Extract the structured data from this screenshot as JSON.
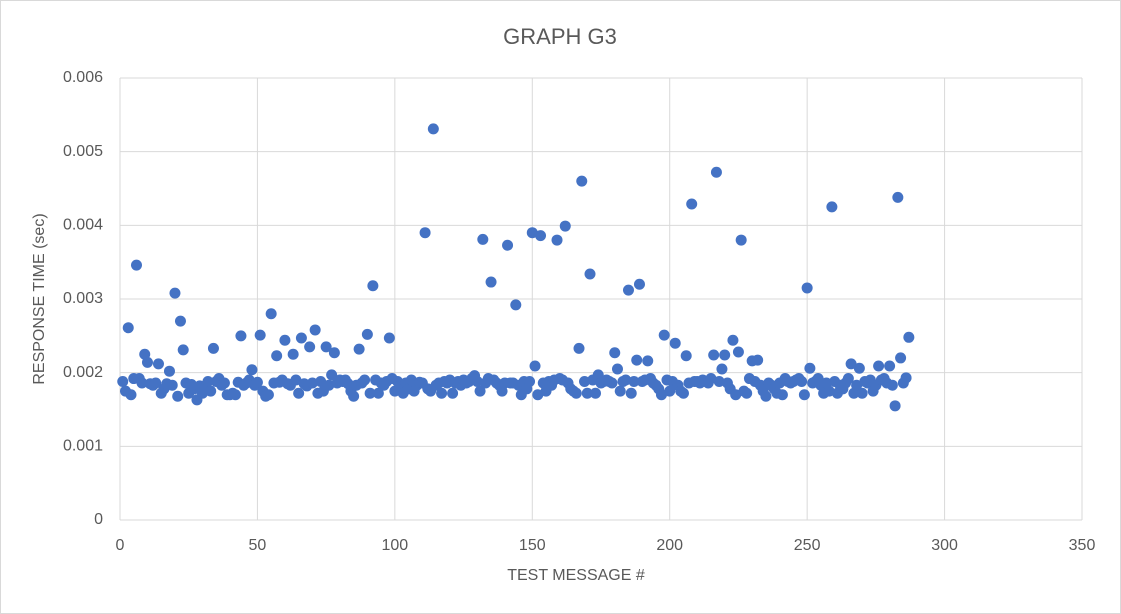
{
  "chart_data": {
    "type": "scatter",
    "title": "GRAPH G3",
    "x_label": "TEST MESSAGE #",
    "y_label": "RESPONSE TIME (sec)",
    "xlim": [
      0,
      350
    ],
    "xticks": [
      0,
      50,
      100,
      150,
      200,
      250,
      300,
      350
    ],
    "ylim": [
      0,
      0.006
    ],
    "yticks": [
      0,
      0.001,
      0.002,
      0.003,
      0.004,
      0.005,
      0.006
    ],
    "grid": true,
    "color": "#4472c4",
    "x": [
      1,
      2,
      3,
      4,
      5,
      6,
      7,
      8,
      9,
      10,
      11,
      12,
      13,
      14,
      15,
      16,
      17,
      18,
      19,
      20,
      21,
      22,
      23,
      24,
      25,
      26,
      27,
      28,
      29,
      30,
      31,
      32,
      33,
      34,
      35,
      36,
      37,
      38,
      39,
      40,
      41,
      42,
      43,
      44,
      45,
      46,
      47,
      48,
      49,
      50,
      51,
      52,
      53,
      54,
      55,
      56,
      57,
      58,
      59,
      60,
      61,
      62,
      63,
      64,
      65,
      66,
      67,
      68,
      69,
      70,
      71,
      72,
      73,
      74,
      75,
      76,
      77,
      78,
      79,
      80,
      81,
      82,
      83,
      84,
      85,
      86,
      87,
      88,
      89,
      90,
      91,
      92,
      93,
      94,
      95,
      96,
      97,
      98,
      99,
      100,
      101,
      102,
      103,
      104,
      105,
      106,
      107,
      108,
      109,
      110,
      111,
      112,
      113,
      114,
      115,
      116,
      117,
      118,
      119,
      120,
      121,
      122,
      123,
      124,
      125,
      126,
      127,
      128,
      129,
      130,
      131,
      132,
      133,
      134,
      135,
      136,
      137,
      138,
      139,
      140,
      141,
      142,
      143,
      144,
      145,
      146,
      147,
      148,
      149,
      150,
      151,
      152,
      153,
      154,
      155,
      156,
      157,
      158,
      159,
      160,
      161,
      162,
      163,
      164,
      165,
      166,
      167,
      168,
      169,
      170,
      171,
      172,
      173,
      174,
      175,
      176,
      177,
      178,
      179,
      180,
      181,
      182,
      183,
      184,
      185,
      186,
      187,
      188,
      189,
      190,
      191,
      192,
      193,
      194,
      195,
      196,
      197,
      198,
      199,
      200,
      201,
      202,
      203,
      204,
      205,
      206,
      207,
      208,
      209,
      210,
      211,
      212,
      213,
      214,
      215,
      216,
      217,
      218,
      219,
      220,
      221,
      222,
      223,
      224,
      225,
      226,
      227,
      228,
      229,
      230,
      231,
      232,
      233,
      234,
      235,
      236,
      237,
      238,
      239,
      240,
      241,
      242,
      243,
      244,
      245,
      246,
      247,
      248,
      249,
      250,
      251,
      252,
      253,
      254,
      255,
      256,
      257,
      258,
      259,
      260,
      261,
      262,
      263,
      264,
      265,
      266,
      267,
      268,
      269,
      270,
      271,
      272,
      273,
      274,
      275,
      276,
      277,
      278,
      279,
      280,
      281,
      282,
      283,
      284,
      285,
      286,
      287
    ],
    "values": [
      0.00188,
      0.00175,
      0.00261,
      0.0017,
      0.00192,
      0.00346,
      0.00192,
      0.00186,
      0.00225,
      0.00214,
      0.00185,
      0.00183,
      0.00186,
      0.00212,
      0.00172,
      0.00178,
      0.00185,
      0.00202,
      0.00183,
      0.00308,
      0.00168,
      0.0027,
      0.00231,
      0.00186,
      0.00172,
      0.00184,
      0.00178,
      0.00163,
      0.00182,
      0.00172,
      0.00178,
      0.00188,
      0.00175,
      0.00233,
      0.00188,
      0.00192,
      0.00183,
      0.00186,
      0.0017,
      0.0017,
      0.00172,
      0.0017,
      0.00187,
      0.0025,
      0.00183,
      0.00186,
      0.0019,
      0.00204,
      0.00183,
      0.00187,
      0.00251,
      0.00175,
      0.00168,
      0.0017,
      0.0028,
      0.00186,
      0.00223,
      0.00187,
      0.0019,
      0.00244,
      0.00185,
      0.00183,
      0.00225,
      0.0019,
      0.00172,
      0.00247,
      0.00185,
      0.00182,
      0.00235,
      0.00186,
      0.00258,
      0.00172,
      0.00188,
      0.00175,
      0.00235,
      0.00183,
      0.00197,
      0.00227,
      0.00186,
      0.0019,
      0.00188,
      0.0019,
      0.00185,
      0.00175,
      0.00168,
      0.00183,
      0.00232,
      0.00186,
      0.0019,
      0.00252,
      0.00172,
      0.00318,
      0.0019,
      0.00172,
      0.00186,
      0.00183,
      0.00188,
      0.00247,
      0.00192,
      0.00175,
      0.00188,
      0.00183,
      0.00172,
      0.00186,
      0.00178,
      0.0019,
      0.00175,
      0.00183,
      0.00187,
      0.00186,
      0.0039,
      0.00178,
      0.00175,
      0.00531,
      0.00183,
      0.00186,
      0.00172,
      0.00188,
      0.00186,
      0.0019,
      0.00172,
      0.00186,
      0.00188,
      0.00183,
      0.0019,
      0.00186,
      0.00188,
      0.00192,
      0.00196,
      0.00188,
      0.00175,
      0.00381,
      0.00186,
      0.00192,
      0.00323,
      0.0019,
      0.00186,
      0.00183,
      0.00175,
      0.00186,
      0.00373,
      0.00186,
      0.00186,
      0.00292,
      0.00183,
      0.0017,
      0.00188,
      0.00178,
      0.00188,
      0.0039,
      0.00209,
      0.0017,
      0.00386,
      0.00186,
      0.00175,
      0.00188,
      0.00183,
      0.0019,
      0.0038,
      0.00192,
      0.0019,
      0.00399,
      0.00186,
      0.00178,
      0.00175,
      0.00172,
      0.00233,
      0.0046,
      0.00188,
      0.00172,
      0.00334,
      0.0019,
      0.00172,
      0.00197,
      0.00186,
      0.00188,
      0.0019,
      0.00188,
      0.00186,
      0.00227,
      0.00205,
      0.00175,
      0.00188,
      0.0019,
      0.00312,
      0.00172,
      0.00188,
      0.00217,
      0.0032,
      0.00188,
      0.0019,
      0.00216,
      0.00192,
      0.00186,
      0.00183,
      0.00178,
      0.0017,
      0.00251,
      0.0019,
      0.00175,
      0.00188,
      0.0024,
      0.00183,
      0.00175,
      0.00172,
      0.00223,
      0.00186,
      0.00429,
      0.00188,
      0.00188,
      0.00186,
      0.0019,
      0.00188,
      0.00186,
      0.00192,
      0.00224,
      0.00472,
      0.00188,
      0.00205,
      0.00224,
      0.00186,
      0.00178,
      0.00244,
      0.0017,
      0.00228,
      0.0038,
      0.00175,
      0.00172,
      0.00192,
      0.00216,
      0.00188,
      0.00217,
      0.00183,
      0.00175,
      0.00168,
      0.00186,
      0.00183,
      0.00178,
      0.00172,
      0.00186,
      0.0017,
      0.00192,
      0.00188,
      0.00186,
      0.00188,
      0.0019,
      0.00192,
      0.00188,
      0.0017,
      0.00315,
      0.00206,
      0.00186,
      0.00188,
      0.00192,
      0.00183,
      0.00172,
      0.00186,
      0.00175,
      0.00425,
      0.00188,
      0.00172,
      0.00183,
      0.00178,
      0.00186,
      0.00192,
      0.00212,
      0.00172,
      0.00183,
      0.00206,
      0.00172,
      0.00188,
      0.00186,
      0.0019,
      0.00175,
      0.00183,
      0.00209,
      0.0019,
      0.00192,
      0.00186,
      0.00209,
      0.00183,
      0.00155,
      0.00438,
      0.0022,
      0.00186,
      0.00193,
      0.00248
    ]
  }
}
